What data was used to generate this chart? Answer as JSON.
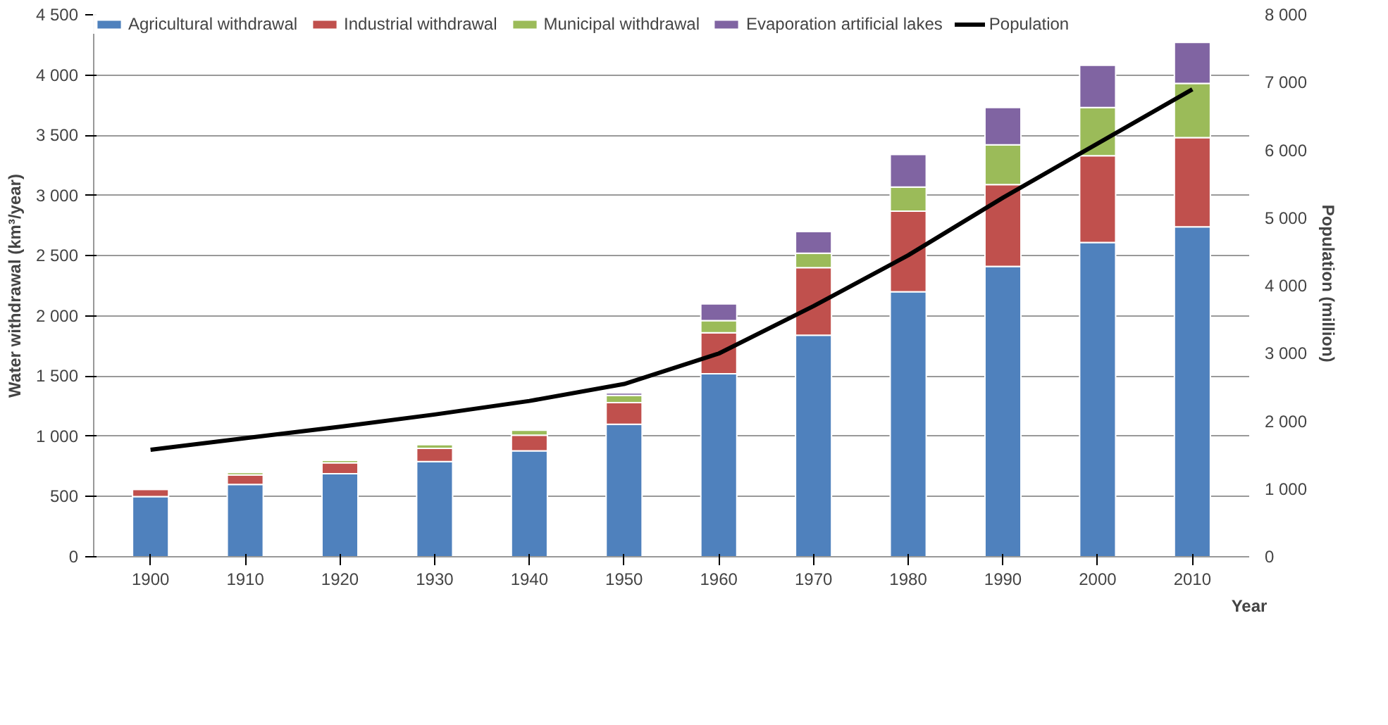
{
  "chart_data": {
    "type": "bar",
    "stacked": true,
    "categories": [
      "1900",
      "1910",
      "1920",
      "1930",
      "1940",
      "1950",
      "1960",
      "1970",
      "1980",
      "1990",
      "2000",
      "2010"
    ],
    "xlabel": "Year",
    "ylabel": "Water withdrawal (km³/year)",
    "y2label": "Population  (million)",
    "series": [
      {
        "name": "Agricultural withdrawal",
        "color": "#4f81bd",
        "values": [
          500,
          600,
          690,
          790,
          880,
          1100,
          1520,
          1840,
          2200,
          2410,
          2610,
          2740
        ]
      },
      {
        "name": "Industrial withdrawal",
        "color": "#c0504d",
        "values": [
          60,
          80,
          90,
          110,
          130,
          180,
          340,
          560,
          670,
          680,
          720,
          740
        ]
      },
      {
        "name": "Municipal withdrawal",
        "color": "#9bbb59",
        "values": [
          10,
          20,
          20,
          30,
          40,
          60,
          100,
          120,
          200,
          330,
          400,
          450
        ]
      },
      {
        "name": "Evaporation artificial lakes",
        "color": "#8064a2",
        "values": [
          null,
          null,
          null,
          null,
          null,
          20,
          140,
          180,
          270,
          310,
          350,
          340
        ]
      },
      {
        "name": "Population",
        "type": "line",
        "axis": "y2",
        "color": "#000000",
        "values": [
          1580,
          1750,
          1920,
          2100,
          2300,
          2550,
          3000,
          3700,
          4450,
          5300,
          6100,
          6900
        ]
      }
    ],
    "ylim": [
      0,
      4500
    ],
    "yticks": [
      {
        "value": 0,
        "label": "0"
      },
      {
        "value": 500,
        "label": "500"
      },
      {
        "value": 1000,
        "label": "1 000"
      },
      {
        "value": 1500,
        "label": "1 500"
      },
      {
        "value": 2000,
        "label": "2 000"
      },
      {
        "value": 2500,
        "label": "2 500"
      },
      {
        "value": 3000,
        "label": "3 000"
      },
      {
        "value": 3500,
        "label": "3 500"
      },
      {
        "value": 4000,
        "label": "4 000"
      },
      {
        "value": 4500,
        "label": "4 500"
      }
    ],
    "y2lim": [
      0,
      8000
    ],
    "y2ticks": [
      {
        "value": 0,
        "label": "0"
      },
      {
        "value": 1000,
        "label": "1 000"
      },
      {
        "value": 2000,
        "label": "2 000"
      },
      {
        "value": 3000,
        "label": "3 000"
      },
      {
        "value": 4000,
        "label": "4 000"
      },
      {
        "value": 5000,
        "label": "5 000"
      },
      {
        "value": 6000,
        "label": "6 000"
      },
      {
        "value": 7000,
        "label": "7 000"
      },
      {
        "value": 8000,
        "label": "8 000"
      }
    ],
    "grid": "y",
    "legend": "top left",
    "marker": "none"
  }
}
